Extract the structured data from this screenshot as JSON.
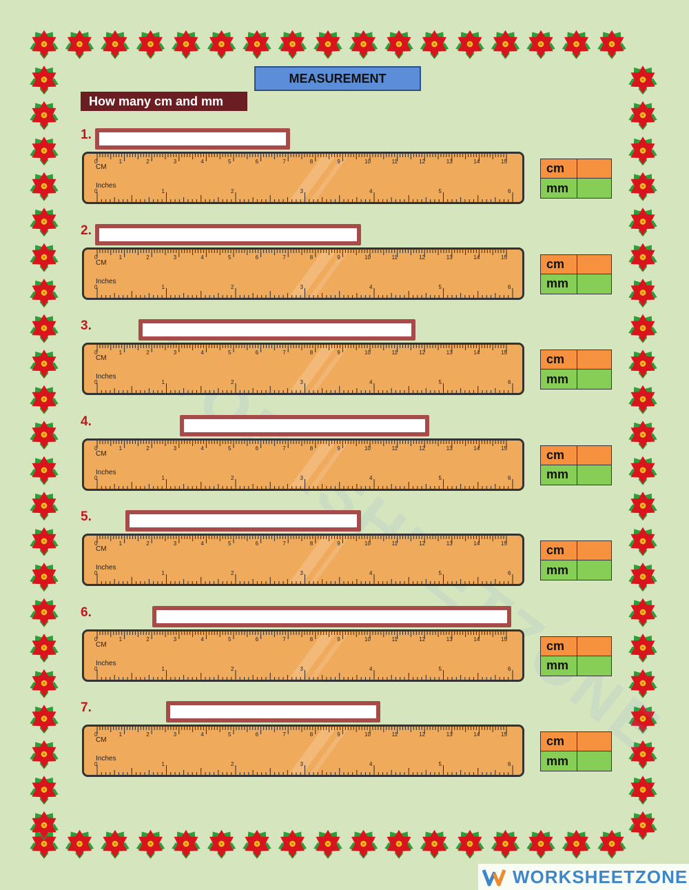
{
  "header": {
    "title": "MEASUREMENT",
    "instruction": "How many cm and mm"
  },
  "ruler": {
    "cm_label": "CM",
    "inch_label": "Inches",
    "cm_ticks": [
      "0",
      "1",
      "2",
      "3",
      "4",
      "5",
      "6",
      "7",
      "8",
      "9",
      "10",
      "11",
      "12",
      "13",
      "14",
      "15"
    ],
    "inch_ticks": [
      "0",
      "1",
      "2",
      "3",
      "4",
      "5",
      "6"
    ],
    "color": "#efaa5c",
    "edge_color": "#333333"
  },
  "answer_labels": {
    "cm": "cm",
    "mm": "mm"
  },
  "items": [
    {
      "number": "1.",
      "bar_start_cm": 0,
      "bar_end_cm": 7
    },
    {
      "number": "2.",
      "bar_start_cm": 0,
      "bar_end_cm": 9.6
    },
    {
      "number": "3.",
      "bar_start_cm": 1.6,
      "bar_end_cm": 11.6
    },
    {
      "number": "4.",
      "bar_start_cm": 3.1,
      "bar_end_cm": 12.1
    },
    {
      "number": "5.",
      "bar_start_cm": 1.1,
      "bar_end_cm": 9.6
    },
    {
      "number": "6.",
      "bar_start_cm": 2.1,
      "bar_end_cm": 15.1
    },
    {
      "number": "7.",
      "bar_start_cm": 2.6,
      "bar_end_cm": 10.3
    }
  ],
  "colors": {
    "bar_border": "#a84a4a",
    "cm_cell": "#f6923f",
    "mm_cell": "#86ce55",
    "title_bg": "#5b8dd8",
    "instruction_bg": "#6b1e22"
  },
  "watermark": "WORKSHEETZONE",
  "brand": {
    "name": "WORKSHEETZONE",
    "logo_icon": "worksheetzone-w-logo-icon"
  }
}
